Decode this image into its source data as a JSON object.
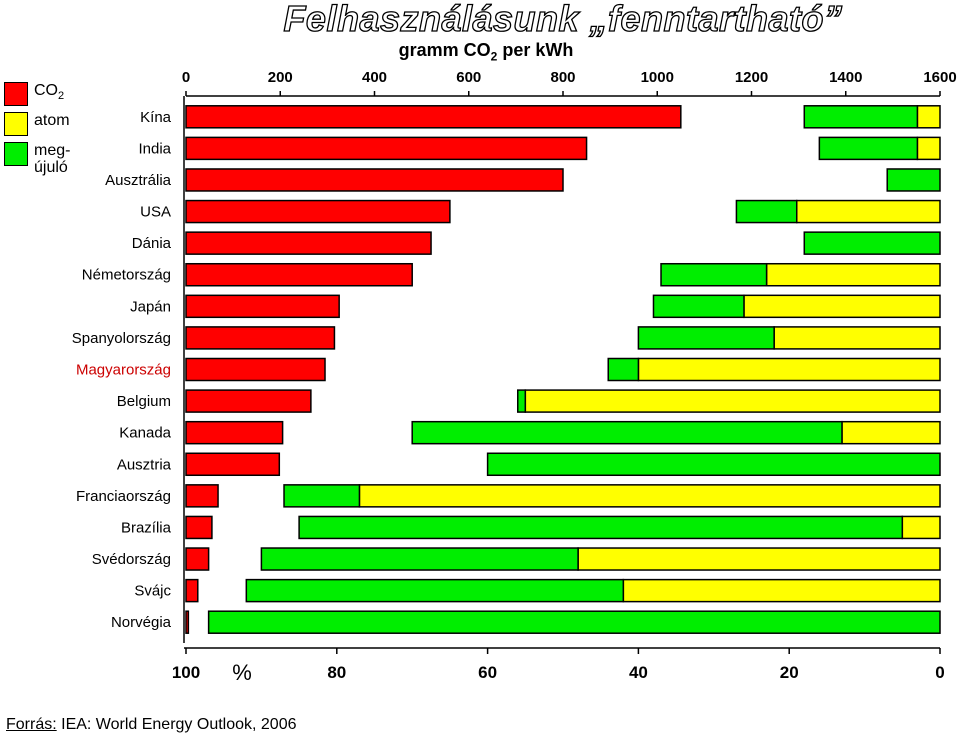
{
  "title": "Felhasználásunk „fenntartható”",
  "subtitle": {
    "prefix": "gramm CO",
    "sub": "2",
    "suffix": " per kWh"
  },
  "legend": [
    {
      "label": "CO",
      "sub": "2",
      "color": "#ff0000"
    },
    {
      "label": "atom",
      "sub": "",
      "color": "#ffff00"
    },
    {
      "label": "meg-\nújuló",
      "sub": "",
      "color": "#00ee00"
    }
  ],
  "source": {
    "label": "Forrás:",
    "text": " IEA: World Energy Outlook, 2006"
  },
  "chart_data": {
    "type": "bar",
    "orientation": "horizontal",
    "categories": [
      "Kína",
      "India",
      "Ausztrália",
      "USA",
      "Dánia",
      "Németország",
      "Japán",
      "Spanyolország",
      "Magyarország",
      "Belgium",
      "Kanada",
      "Ausztria",
      "Franciaország",
      "Brazília",
      "Svédország",
      "Svájc",
      "Norvégia"
    ],
    "highlight_category": "Magyarország",
    "highlight_color": "#cc0000",
    "co2_axis": {
      "label": "gramm CO2 per kWh",
      "range": [
        0,
        1600
      ],
      "ticks": [
        0,
        200,
        400,
        600,
        800,
        1000,
        1200,
        1400,
        1600
      ],
      "position": "top"
    },
    "share_axis": {
      "label": "%",
      "range": [
        100,
        0
      ],
      "ticks": [
        100,
        80,
        60,
        40,
        20,
        0
      ],
      "position": "bottom"
    },
    "series": [
      {
        "name": "CO2",
        "color": "#ff0000",
        "axis": "co2",
        "values": [
          1050,
          850,
          800,
          560,
          520,
          480,
          325,
          315,
          295,
          265,
          205,
          198,
          68,
          55,
          48,
          25,
          5
        ]
      },
      {
        "name": "megújuló",
        "color": "#00ee00",
        "axis": "share",
        "values": [
          15,
          13,
          7,
          8,
          18,
          14,
          12,
          18,
          4,
          1,
          57,
          60,
          10,
          80,
          42,
          50,
          97
        ]
      },
      {
        "name": "atom",
        "color": "#ffff00",
        "axis": "share",
        "values": [
          3,
          3,
          0,
          19,
          0,
          23,
          26,
          22,
          40,
          55,
          13,
          0,
          77,
          5,
          48,
          42,
          0
        ]
      }
    ]
  }
}
